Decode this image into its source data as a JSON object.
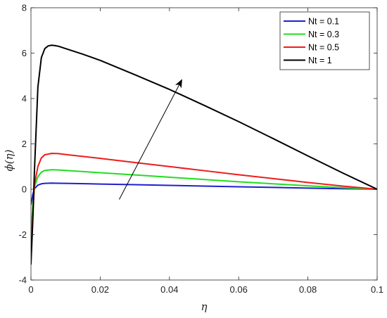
{
  "chart_data": {
    "type": "line",
    "xlabel": "η",
    "ylabel": "ϕ(η)",
    "xlim": [
      0,
      0.1
    ],
    "ylim": [
      -4,
      8
    ],
    "xticks": [
      "0",
      "0.02",
      "0.04",
      "0.06",
      "0.08",
      "0.1"
    ],
    "yticks": [
      "-4",
      "-2",
      "0",
      "2",
      "4",
      "6",
      "8"
    ],
    "grid": false,
    "legend_position": "top-right",
    "series": [
      {
        "name": "Nt =  0.1",
        "color": "#1f1fd0",
        "x": [
          0,
          0.0005,
          0.001,
          0.002,
          0.003,
          0.004,
          0.006,
          0.008,
          0.01,
          0.02,
          0.03,
          0.04,
          0.05,
          0.06,
          0.07,
          0.08,
          0.09,
          0.1
        ],
        "y": [
          -0.67,
          -0.25,
          0.02,
          0.18,
          0.24,
          0.26,
          0.27,
          0.265,
          0.26,
          0.23,
          0.2,
          0.17,
          0.14,
          0.11,
          0.08,
          0.05,
          0.025,
          0
        ]
      },
      {
        "name": "Nt  =  0.3",
        "color": "#22dd22",
        "x": [
          0,
          0.0005,
          0.001,
          0.002,
          0.003,
          0.004,
          0.006,
          0.008,
          0.01,
          0.02,
          0.03,
          0.04,
          0.05,
          0.06,
          0.07,
          0.08,
          0.09,
          0.1
        ],
        "y": [
          -2.0,
          -0.8,
          0.1,
          0.55,
          0.75,
          0.83,
          0.86,
          0.85,
          0.83,
          0.73,
          0.63,
          0.53,
          0.43,
          0.33,
          0.24,
          0.15,
          0.07,
          0
        ]
      },
      {
        "name": "Nt  =  0.5",
        "color": "#ee1c1c",
        "x": [
          0,
          0.0005,
          0.001,
          0.002,
          0.003,
          0.004,
          0.006,
          0.008,
          0.01,
          0.02,
          0.03,
          0.04,
          0.05,
          0.06,
          0.07,
          0.08,
          0.09,
          0.1
        ],
        "y": [
          -2.6,
          -1.3,
          0.2,
          1.0,
          1.38,
          1.52,
          1.58,
          1.57,
          1.53,
          1.36,
          1.18,
          1.0,
          0.82,
          0.64,
          0.47,
          0.3,
          0.14,
          0
        ]
      },
      {
        "name": "Nt =  1",
        "color": "#000000",
        "x": [
          0,
          0.0005,
          0.001,
          0.002,
          0.003,
          0.004,
          0.005,
          0.006,
          0.007,
          0.008,
          0.01,
          0.015,
          0.02,
          0.03,
          0.04,
          0.05,
          0.06,
          0.07,
          0.08,
          0.09,
          0.1
        ],
        "y": [
          -3.3,
          -1.5,
          0.8,
          4.5,
          5.8,
          6.2,
          6.32,
          6.35,
          6.33,
          6.3,
          6.2,
          5.95,
          5.68,
          5.05,
          4.4,
          3.7,
          2.98,
          2.23,
          1.47,
          0.72,
          0
        ]
      }
    ],
    "annotations": [
      {
        "type": "arrow",
        "from": [
          0.0255,
          -0.45
        ],
        "to": [
          0.0435,
          4.8
        ],
        "color": "#000000"
      }
    ]
  }
}
